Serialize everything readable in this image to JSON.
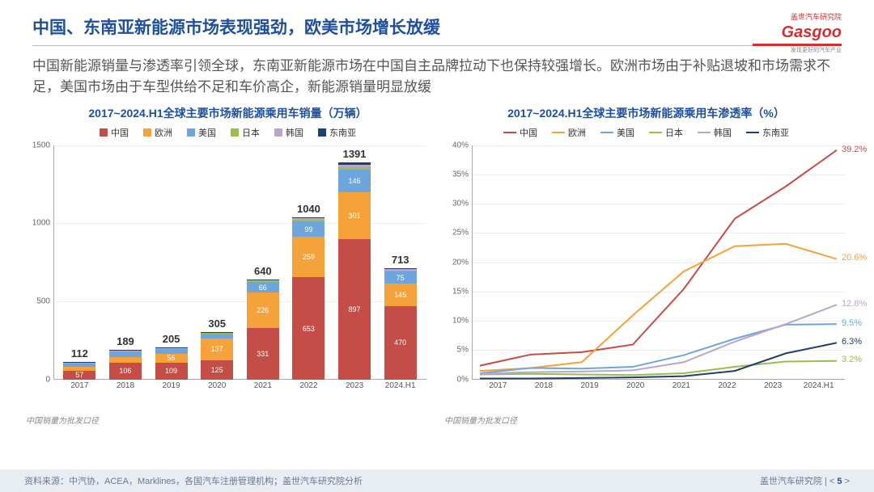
{
  "header": {
    "title": "中国、东南亚新能源市场表现强劲，欧美市场增长放缓",
    "logo_cn": "盖世汽车研究院",
    "logo_en": "Gasgoo",
    "logo_sub": "发现更好的汽车产业"
  },
  "subtitle": "中国新能源销量与渗透率引领全球，东南亚新能源市场在中国自主品牌拉动下也保持较强增长。欧洲市场由于补贴退坡和市场需求不足，美国市场由于车型供给不足和车价高企，新能源销量明显放缓",
  "series_labels": {
    "cn": "中国",
    "eu": "欧洲",
    "us": "美国",
    "jp": "日本",
    "kr": "韩国",
    "sea": "东南亚"
  },
  "colors": {
    "cn": "#c44d47",
    "eu": "#f5a23a",
    "us": "#6ea5dc",
    "jp": "#9bbd4a",
    "kr": "#b9a6cc",
    "sea": "#1f3f6e",
    "grid": "#eeeeee",
    "axis": "#aaaaaa",
    "title": "#1e4f9e",
    "text": "#555555"
  },
  "bar_chart": {
    "type": "stacked-bar",
    "title": "2017~2024.H1全球主要市场新能源乘用车销量（万辆）",
    "note": "中国销量为批发口径",
    "ymax": 1500,
    "ytick_step": 500,
    "categories": [
      "2017",
      "2018",
      "2019",
      "2020",
      "2021",
      "2022",
      "2023",
      "2024.H1"
    ],
    "totals": [
      112,
      189,
      205,
      305,
      640,
      1040,
      1391,
      713
    ],
    "data": [
      {
        "cn": 57,
        "eu": 26,
        "us": 20,
        "jp": 4,
        "kr": 3,
        "sea": 2
      },
      {
        "cn": 106,
        "eu": 38,
        "us": 36,
        "jp": 4,
        "kr": 3,
        "sea": 2
      },
      {
        "cn": 109,
        "eu": 56,
        "us": 32,
        "jp": 4,
        "kr": 2,
        "sea": 2
      },
      {
        "cn": 125,
        "eu": 137,
        "us": 32,
        "jp": 5,
        "kr": 4,
        "sea": 2
      },
      {
        "cn": 331,
        "eu": 226,
        "us": 66,
        "jp": 8,
        "kr": 6,
        "sea": 3
      },
      {
        "cn": 653,
        "eu": 259,
        "us": 99,
        "jp": 12,
        "kr": 10,
        "sea": 7
      },
      {
        "cn": 897,
        "eu": 301,
        "us": 146,
        "jp": 17,
        "kr": 15,
        "sea": 15
      },
      {
        "cn": 470,
        "eu": 145,
        "us": 75,
        "jp": 8,
        "kr": 7,
        "sea": 8
      }
    ],
    "show_labels": {
      "0": [
        "cn"
      ],
      "1": [
        "cn",
        "eu"
      ],
      "2": [
        "cn",
        "eu",
        "us"
      ],
      "3": [
        "cn",
        "eu",
        "us"
      ],
      "4": [
        "cn",
        "eu",
        "us"
      ],
      "5": [
        "cn",
        "eu",
        "us"
      ],
      "6": [
        "cn",
        "eu",
        "us"
      ],
      "7": [
        "cn",
        "eu",
        "us"
      ]
    }
  },
  "line_chart": {
    "type": "line",
    "title": "2017~2024.H1全球主要市场新能源乘用车渗透率（%）",
    "note": "中国销量为批发口径",
    "ymax": 40,
    "ytick_step": 5,
    "categories": [
      "2017",
      "2018",
      "2019",
      "2020",
      "2021",
      "2022",
      "2023",
      "2024.H1"
    ],
    "series": {
      "cn": [
        2.4,
        4.3,
        4.7,
        6.0,
        15.5,
        27.5,
        33.0,
        39.2
      ],
      "eu": [
        1.5,
        2.0,
        3.0,
        11.0,
        18.5,
        22.8,
        23.2,
        20.6
      ],
      "us": [
        1.1,
        2.0,
        1.9,
        2.2,
        4.2,
        7.0,
        9.4,
        9.5
      ],
      "jp": [
        0.9,
        1.0,
        0.9,
        0.8,
        1.1,
        2.2,
        3.1,
        3.2
      ],
      "kr": [
        1.0,
        1.3,
        1.4,
        1.6,
        3.0,
        6.5,
        9.5,
        12.8
      ],
      "sea": [
        0.2,
        0.2,
        0.3,
        0.4,
        0.6,
        1.5,
        4.5,
        6.3
      ]
    },
    "end_labels": {
      "cn": "39.2%",
      "eu": "20.6%",
      "kr": "12.8%",
      "us": "9.5%",
      "sea": "6.3%",
      "jp": "3.2%"
    }
  },
  "footer": {
    "source": "资料来源：中汽协，ACEA，Marklines，各国汽车注册管理机构；盖世汽车研究院分析",
    "org": "盖世汽车研究院",
    "page": "5"
  }
}
